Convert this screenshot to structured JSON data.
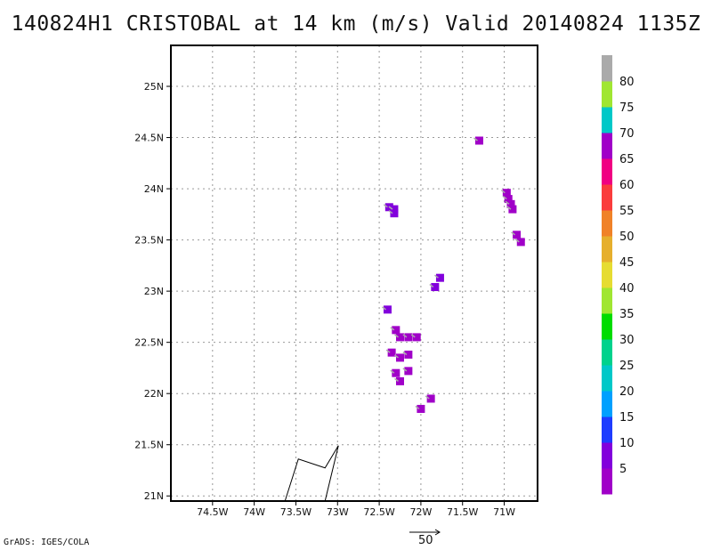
{
  "title": "140824H1 CRISTOBAL at 14 km (m/s) Valid 20140824 1135Z",
  "credit": "GrADS: IGES/COLA",
  "chart_data": {
    "type": "heatmap",
    "title": "140824H1 CRISTOBAL at 14 km (m/s) Valid 20140824 1135Z",
    "x_range": [
      -75.0,
      -70.6
    ],
    "y_range": [
      20.95,
      25.4
    ],
    "x_ticks": [
      -74.5,
      -74.0,
      -73.5,
      -73.0,
      -72.5,
      -72.0,
      -71.5,
      -71.0
    ],
    "x_tick_labels": [
      "74.5W",
      "74W",
      "73.5W",
      "73W",
      "72.5W",
      "72W",
      "71.5W",
      "71W"
    ],
    "y_ticks": [
      21.0,
      21.5,
      22.0,
      22.5,
      23.0,
      23.5,
      24.0,
      24.5,
      25.0
    ],
    "y_tick_labels": [
      "21N",
      "21.5N",
      "22N",
      "22.5N",
      "23N",
      "23.5N",
      "24N",
      "24.5N",
      "25N"
    ],
    "grid": true,
    "colorbar": {
      "labels": [
        "5",
        "10",
        "15",
        "20",
        "25",
        "30",
        "35",
        "40",
        "45",
        "50",
        "55",
        "60",
        "65",
        "70",
        "75",
        "80"
      ],
      "colors": [
        "#a000c8",
        "#8200dc",
        "#1e3cff",
        "#00a0ff",
        "#00c8c8",
        "#00d28c",
        "#00dc00",
        "#a0e632",
        "#e6dc32",
        "#e6af2d",
        "#f08228",
        "#fa3c3c",
        "#f00082",
        "#a000c8",
        "#00c8c8",
        "#a0e632",
        "#aaaaaa"
      ]
    },
    "cells": [
      {
        "lon": -71.3,
        "lat": 24.47,
        "value": 5
      },
      {
        "lon": -70.97,
        "lat": 23.96,
        "value": 5
      },
      {
        "lon": -70.95,
        "lat": 23.9,
        "value": 5
      },
      {
        "lon": -70.92,
        "lat": 23.85,
        "value": 5
      },
      {
        "lon": -70.9,
        "lat": 23.8,
        "value": 5
      },
      {
        "lon": -70.85,
        "lat": 23.55,
        "value": 5
      },
      {
        "lon": -70.8,
        "lat": 23.48,
        "value": 5
      },
      {
        "lon": -72.38,
        "lat": 23.82,
        "value": 10
      },
      {
        "lon": -72.32,
        "lat": 23.8,
        "value": 10
      },
      {
        "lon": -72.32,
        "lat": 23.76,
        "value": 10
      },
      {
        "lon": -71.77,
        "lat": 23.13,
        "value": 10
      },
      {
        "lon": -71.83,
        "lat": 23.04,
        "value": 10
      },
      {
        "lon": -72.4,
        "lat": 22.82,
        "value": 10
      },
      {
        "lon": -72.3,
        "lat": 22.62,
        "value": 5
      },
      {
        "lon": -72.25,
        "lat": 22.55,
        "value": 5
      },
      {
        "lon": -72.15,
        "lat": 22.55,
        "value": 5
      },
      {
        "lon": -72.05,
        "lat": 22.55,
        "value": 5
      },
      {
        "lon": -72.35,
        "lat": 22.4,
        "value": 5
      },
      {
        "lon": -72.25,
        "lat": 22.35,
        "value": 5
      },
      {
        "lon": -72.15,
        "lat": 22.38,
        "value": 5
      },
      {
        "lon": -72.3,
        "lat": 22.2,
        "value": 5
      },
      {
        "lon": -72.15,
        "lat": 22.22,
        "value": 5
      },
      {
        "lon": -72.25,
        "lat": 22.12,
        "value": 5
      },
      {
        "lon": -72.0,
        "lat": 21.85,
        "value": 5
      },
      {
        "lon": -71.88,
        "lat": 21.95,
        "value": 5
      }
    ],
    "wind_barb": {
      "lon": -73.15,
      "lat": 21.1,
      "label": "wind barb"
    },
    "reference_vector": {
      "value": "50"
    }
  }
}
